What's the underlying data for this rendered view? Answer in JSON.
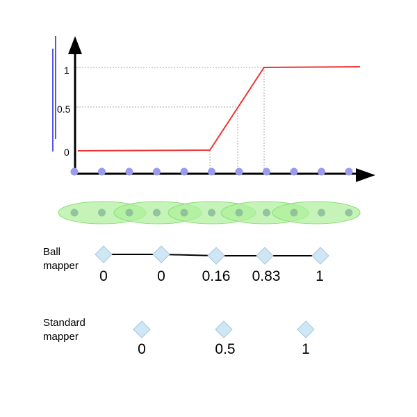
{
  "graph": {
    "y_ticks": [
      "0",
      "0.5",
      "1"
    ],
    "function_color": "#ee3333",
    "point_color": "#9a9aee",
    "axis_color": "#000000",
    "guide_color": "#aaaaaa",
    "interval_color": "#5555ee",
    "point_count": 11
  },
  "cover": {
    "ellipse_fill": "#aef09a",
    "ellipse_stroke": "#88dd77",
    "dot_color": "#88bb99",
    "ellipse_count": 5
  },
  "ball_mapper": {
    "label_line1": "Ball",
    "label_line2": "mapper",
    "node_values": [
      "0",
      "0",
      "0.16",
      "0.83",
      "1"
    ],
    "node_fill": "#cfe6f4",
    "node_stroke": "#a6c8e0"
  },
  "standard_mapper": {
    "label_line1": "Standard",
    "label_line2": "mapper",
    "node_values": [
      "0",
      "0.5",
      "1"
    ]
  }
}
